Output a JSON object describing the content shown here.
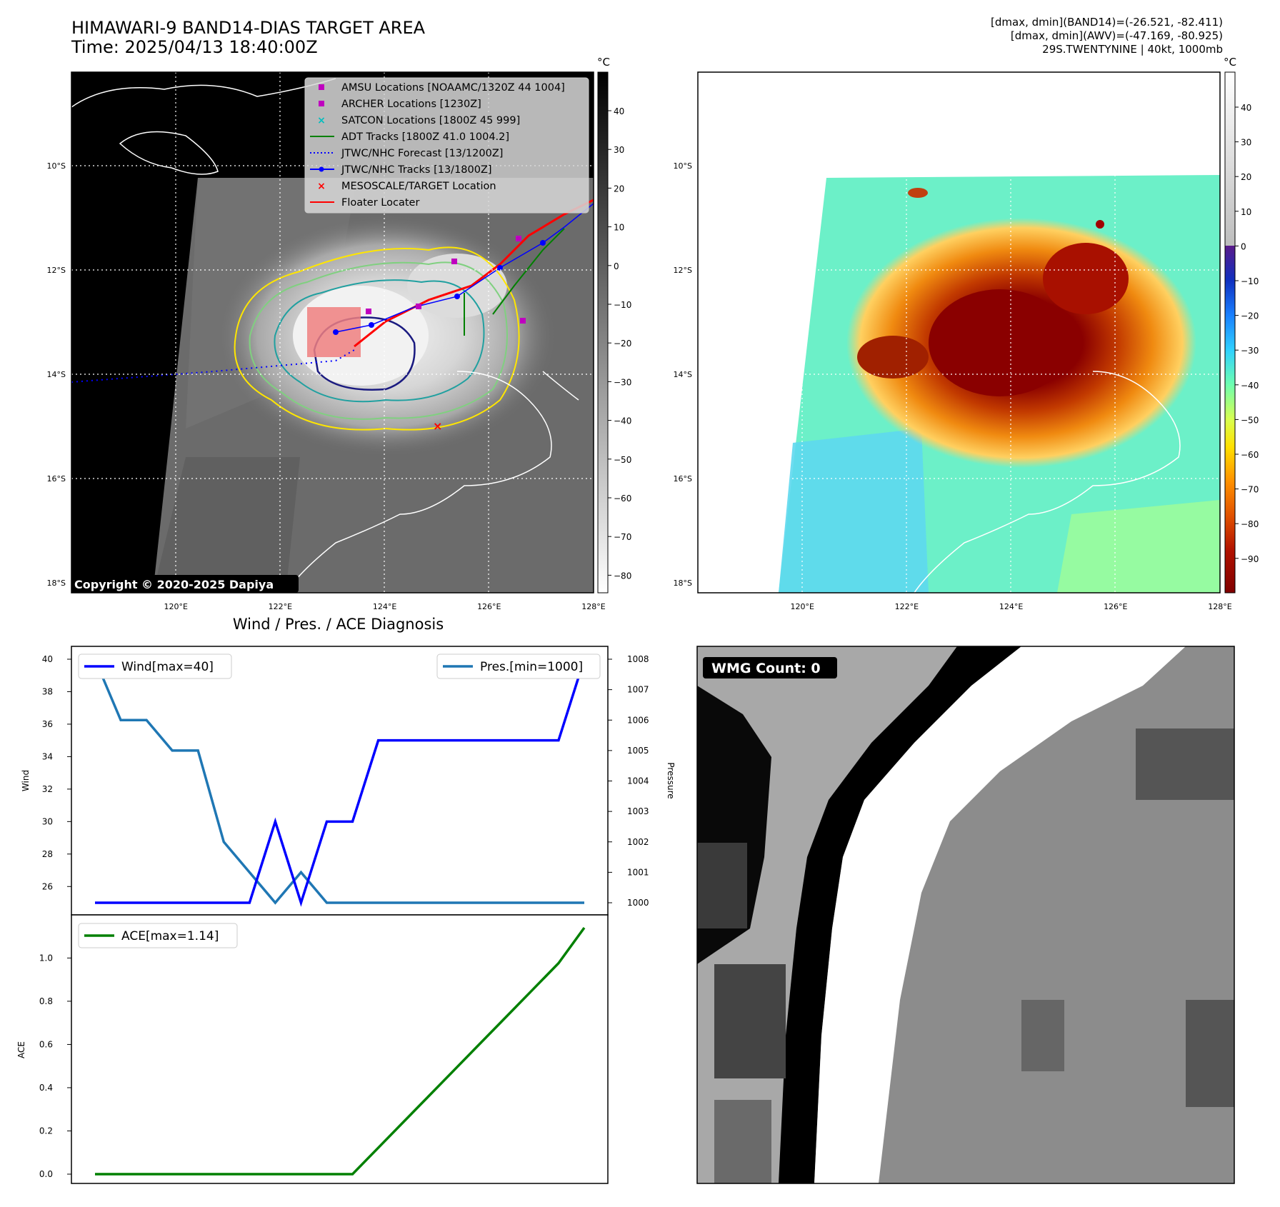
{
  "header": {
    "title_line1": "HIMAWARI-9 BAND14-DIAS TARGET AREA",
    "title_line2": "Time: 2025/04/13 18:40:00Z",
    "right_line1": "[dmax, dmin](BAND14)=(-26.521, -82.411)",
    "right_line2": "[dmax, dmin](AWV)=(-47.169, -80.925)",
    "right_line3": "29S.TWENTYNINE | 40kt, 1000mb"
  },
  "map": {
    "lat_ticks": [
      "10°S",
      "12°S",
      "14°S",
      "16°S",
      "18°S"
    ],
    "lon_ticks": [
      "120°E",
      "122°E",
      "124°E",
      "126°E",
      "128°E"
    ],
    "copyright": "Copyright © 2020-2025 Dapiya",
    "legend": [
      {
        "label": "AMSU Locations [NOAAMC/1320Z 44 1004]",
        "color": "#bf00bf",
        "marker": "square"
      },
      {
        "label": "ARCHER Locations [1230Z]",
        "color": "#bf00bf",
        "marker": "square"
      },
      {
        "label": "SATCON Locations [1800Z 45 999]",
        "color": "#00bfbf",
        "marker": "x"
      },
      {
        "label": "ADT Tracks [1800Z 41.0 1004.2]",
        "color": "#008000",
        "marker": "line"
      },
      {
        "label": "JTWC/NHC Forecast [13/1200Z]",
        "color": "#0000ff",
        "marker": "dotted"
      },
      {
        "label": "JTWC/NHC Tracks [13/1800Z]",
        "color": "#0000ff",
        "marker": "line-dot"
      },
      {
        "label": "MESOSCALE/TARGET Location",
        "color": "#ff0000",
        "marker": "x"
      },
      {
        "label": "Floater Locater",
        "color": "#ff0000",
        "marker": "line"
      }
    ]
  },
  "colorbars": {
    "unit": "°C",
    "band14_ticks": [
      "40",
      "30",
      "20",
      "10",
      "0",
      "−10",
      "−20",
      "−30",
      "−40",
      "−50",
      "−60",
      "−70",
      "−80"
    ],
    "awv_ticks": [
      "40",
      "30",
      "20",
      "10",
      "0",
      "−10",
      "−20",
      "−30",
      "−40",
      "−50",
      "−60",
      "−70",
      "−80",
      "−90"
    ]
  },
  "diagnosis_title": "Wind / Pres. / ACE Diagnosis",
  "wmg_label": "WMG Count: 0",
  "chart_data": [
    {
      "type": "line",
      "title": "Wind / Pres. / ACE Diagnosis",
      "ylabel": "Wind",
      "y2label": "Pressure",
      "ylim": [
        25,
        40.5
      ],
      "y2lim": [
        1000,
        1008
      ],
      "yticks": [
        "26",
        "28",
        "30",
        "32",
        "34",
        "36",
        "38",
        "40"
      ],
      "y2ticks": [
        "1000",
        "1001",
        "1002",
        "1003",
        "1004",
        "1005",
        "1006",
        "1007",
        "1008"
      ],
      "series": [
        {
          "name": "Wind[max=40]",
          "color": "#0000ff",
          "axis": "left",
          "x": [
            0,
            1,
            2,
            3,
            4,
            5,
            6,
            7,
            8,
            9,
            10,
            11,
            12,
            13,
            14,
            15,
            16,
            17,
            18,
            19
          ],
          "values": [
            25,
            25,
            25,
            25,
            25,
            25,
            25,
            30,
            25,
            30,
            30,
            35,
            35,
            35,
            35,
            35,
            35,
            35,
            35,
            40
          ]
        },
        {
          "name": "Pres.[min=1000]",
          "color": "#1f77b4",
          "axis": "right",
          "x": [
            0,
            1,
            2,
            3,
            4,
            5,
            6,
            7,
            8,
            9,
            10,
            11,
            12,
            13,
            14,
            15,
            16,
            17,
            18,
            19
          ],
          "values": [
            1008,
            1006,
            1006,
            1005,
            1005,
            1002,
            1001,
            1000,
            1001,
            1000,
            1000,
            1000,
            1000,
            1000,
            1000,
            1000,
            1000,
            1000,
            1000,
            1000
          ]
        }
      ]
    },
    {
      "type": "line",
      "ylabel": "ACE",
      "ylim": [
        -0.04,
        1.2
      ],
      "yticks": [
        "0.0",
        "0.2",
        "0.4",
        "0.6",
        "0.8",
        "1.0"
      ],
      "series": [
        {
          "name": "ACE[max=1.14]",
          "color": "#008000",
          "x": [
            0,
            1,
            2,
            3,
            4,
            5,
            6,
            7,
            8,
            9,
            10,
            11,
            12,
            13,
            14,
            15,
            16,
            17,
            18,
            19
          ],
          "values": [
            0,
            0,
            0,
            0,
            0,
            0,
            0,
            0,
            0,
            0,
            0,
            0.122,
            0.244,
            0.366,
            0.488,
            0.61,
            0.732,
            0.854,
            0.976,
            1.14
          ]
        }
      ]
    }
  ]
}
